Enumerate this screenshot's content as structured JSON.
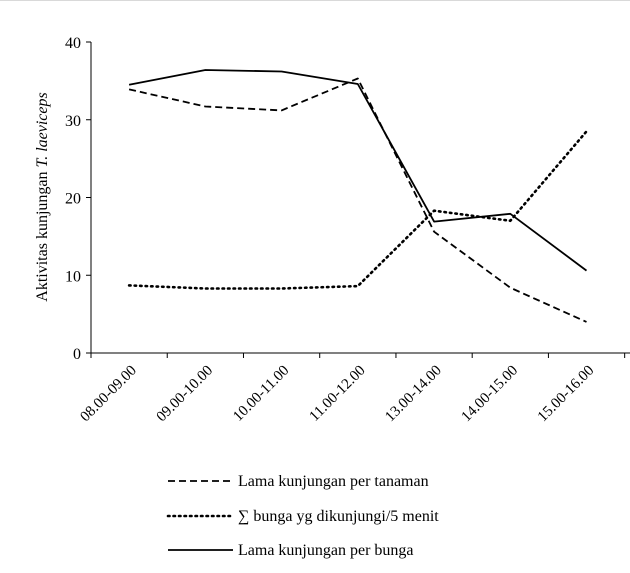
{
  "chart_data": {
    "type": "line",
    "title": "",
    "xlabel": "",
    "ylabel_prefix": "Aktivitas kunjungan ",
    "ylabel_italic": "T. laeviceps",
    "ylim": [
      0,
      40
    ],
    "yticks": [
      "0",
      "10",
      "20",
      "30",
      "40"
    ],
    "categories": [
      "08.00-09.00",
      "09.00-10.00",
      "10.00-11.00",
      "11.00-12.00",
      "13.00-14.00",
      "14.00-15.00",
      "15.00-16.00"
    ],
    "grid": false,
    "legend_position": "bottom",
    "series": [
      {
        "name": "Lama kunjungan per tanaman",
        "style": "dashed",
        "values": [
          33.9,
          31.7,
          31.2,
          35.3,
          15.6,
          8.4,
          4.0
        ]
      },
      {
        "name": "∑ bunga yg dikunjungi/5 menit",
        "style": "dotted",
        "values": [
          8.7,
          8.3,
          8.3,
          8.6,
          18.3,
          17.0,
          28.5
        ]
      },
      {
        "name": "Lama kunjungan per bunga",
        "style": "solid",
        "values": [
          34.5,
          36.4,
          36.2,
          34.6,
          16.9,
          17.9,
          10.6
        ]
      }
    ]
  }
}
